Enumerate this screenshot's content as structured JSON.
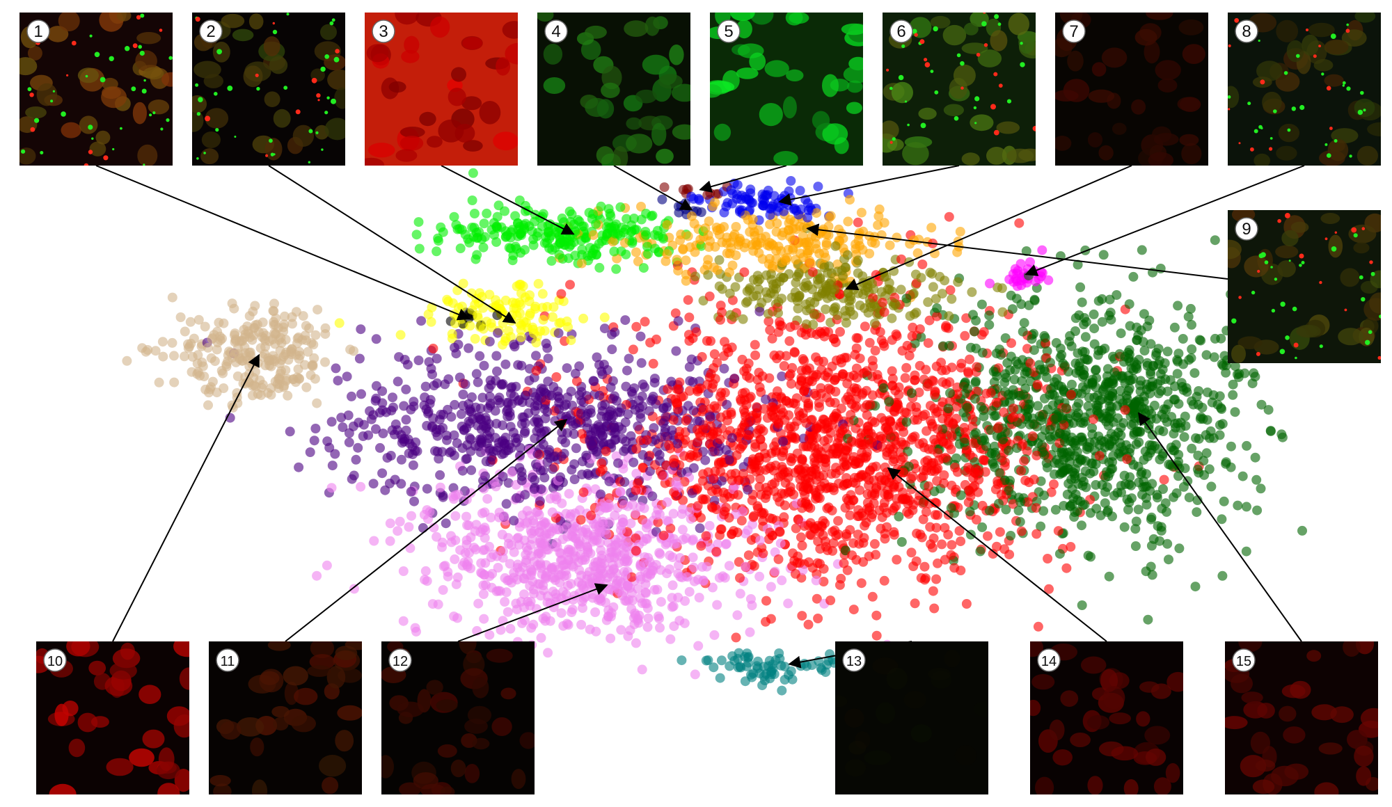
{
  "chart_data": {
    "type": "scatter",
    "title": "",
    "xlabel": "",
    "ylabel": "",
    "axes_visible": false,
    "grid": false,
    "legend": "none",
    "clusters": [
      {
        "id": "1",
        "color": "#000000",
        "center": [
          0.335,
          0.395
        ],
        "spread": [
          0.008,
          0.006
        ],
        "n": 10
      },
      {
        "id": "2",
        "color": "#ffff00",
        "center": [
          0.365,
          0.39
        ],
        "spread": [
          0.03,
          0.022
        ],
        "n": 110
      },
      {
        "id": "3",
        "color": "#00ee00",
        "center": [
          0.405,
          0.29
        ],
        "spread": [
          0.042,
          0.018
        ],
        "n": 240
      },
      {
        "id": "4",
        "color": "#000080",
        "center": [
          0.492,
          0.258
        ],
        "spread": [
          0.01,
          0.006
        ],
        "n": 10
      },
      {
        "id": "5",
        "color": "#800000",
        "center": [
          0.5,
          0.235
        ],
        "spread": [
          0.012,
          0.004
        ],
        "n": 10
      },
      {
        "id": "6",
        "color": "#0000ee",
        "center": [
          0.548,
          0.25
        ],
        "spread": [
          0.022,
          0.009
        ],
        "n": 80
      },
      {
        "id": "7",
        "color": "#808000",
        "center": [
          0.6,
          0.36
        ],
        "spread": [
          0.04,
          0.02
        ],
        "n": 220
      },
      {
        "id": "8",
        "color": "#ff00ff",
        "center": [
          0.735,
          0.34
        ],
        "spread": [
          0.01,
          0.01
        ],
        "n": 30
      },
      {
        "id": "9",
        "color": "#ffa500",
        "center": [
          0.555,
          0.3
        ],
        "spread": [
          0.06,
          0.02
        ],
        "n": 230
      },
      {
        "id": "10",
        "color": "#d2b48c",
        "center": [
          0.185,
          0.44
        ],
        "spread": [
          0.03,
          0.03
        ],
        "n": 250
      },
      {
        "id": "11",
        "color": "#4b0082",
        "center": [
          0.39,
          0.53
        ],
        "spread": [
          0.075,
          0.05
        ],
        "n": 700
      },
      {
        "id": "12",
        "color": "#ee82ee",
        "center": [
          0.42,
          0.69
        ],
        "spread": [
          0.06,
          0.05
        ],
        "n": 750
      },
      {
        "id": "13",
        "color": "#008080",
        "center": [
          0.55,
          0.825
        ],
        "spread": [
          0.04,
          0.012
        ],
        "n": 70
      },
      {
        "id": "14",
        "color": "#ff0000",
        "center": [
          0.6,
          0.55
        ],
        "spread": [
          0.08,
          0.08
        ],
        "n": 1500
      },
      {
        "id": "15",
        "color": "#006400",
        "center": [
          0.785,
          0.52
        ],
        "spread": [
          0.055,
          0.075
        ],
        "n": 950
      }
    ],
    "thumbnails": [
      {
        "label": "1",
        "base": "#140505",
        "red": 0.55,
        "green": 0.35,
        "style": "specks"
      },
      {
        "label": "2",
        "base": "#070404",
        "red": 0.35,
        "green": 0.3,
        "style": "specks"
      },
      {
        "label": "3",
        "base": "#c41e0a",
        "red": 0.9,
        "green": 0.0,
        "style": "red-cells"
      },
      {
        "label": "4",
        "base": "#081004",
        "red": 0.15,
        "green": 0.55,
        "style": "green-cells"
      },
      {
        "label": "5",
        "base": "#0a2a06",
        "red": 0.05,
        "green": 0.95,
        "style": "green-cells"
      },
      {
        "label": "6",
        "base": "#0d1f08",
        "red": 0.35,
        "green": 0.55,
        "style": "mixed"
      },
      {
        "label": "7",
        "base": "#080502",
        "red": 0.25,
        "green": 0.05,
        "style": "sparse-red"
      },
      {
        "label": "8",
        "base": "#0b130a",
        "red": 0.3,
        "green": 0.25,
        "style": "mixed"
      },
      {
        "label": "9",
        "base": "#0e1609",
        "red": 0.35,
        "green": 0.3,
        "style": "mixed"
      },
      {
        "label": "10",
        "base": "#0b0202",
        "red": 0.85,
        "green": 0.02,
        "style": "red-cells"
      },
      {
        "label": "11",
        "base": "#060302",
        "red": 0.35,
        "green": 0.1,
        "style": "sparse-red"
      },
      {
        "label": "12",
        "base": "#050302",
        "red": 0.3,
        "green": 0.05,
        "style": "sparse-red"
      },
      {
        "label": "13",
        "base": "#060703",
        "red": 0.08,
        "green": 0.08,
        "style": "dim"
      },
      {
        "label": "14",
        "base": "#080202",
        "red": 0.4,
        "green": 0.02,
        "style": "sparse-red"
      },
      {
        "label": "15",
        "base": "#0d0202",
        "red": 0.45,
        "green": 0.03,
        "style": "sparse-red"
      }
    ],
    "annotation_targets": [
      {
        "label": "1",
        "point": [
          0.337,
          0.395
        ]
      },
      {
        "label": "2",
        "point": [
          0.37,
          0.4
        ]
      },
      {
        "label": "3",
        "point": [
          0.412,
          0.29
        ]
      },
      {
        "label": "4",
        "point": [
          0.497,
          0.26
        ]
      },
      {
        "label": "5",
        "point": [
          0.503,
          0.235
        ]
      },
      {
        "label": "6",
        "point": [
          0.56,
          0.25
        ]
      },
      {
        "label": "7",
        "point": [
          0.608,
          0.358
        ]
      },
      {
        "label": "8",
        "point": [
          0.737,
          0.34
        ]
      },
      {
        "label": "9",
        "point": [
          0.58,
          0.283
        ]
      },
      {
        "label": "10",
        "point": [
          0.186,
          0.44
        ]
      },
      {
        "label": "11",
        "point": [
          0.407,
          0.52
        ]
      },
      {
        "label": "12",
        "point": [
          0.436,
          0.725
        ]
      },
      {
        "label": "13",
        "point": [
          0.567,
          0.823
        ]
      },
      {
        "label": "14",
        "point": [
          0.638,
          0.58
        ]
      },
      {
        "label": "15",
        "point": [
          0.818,
          0.512
        ]
      }
    ]
  }
}
